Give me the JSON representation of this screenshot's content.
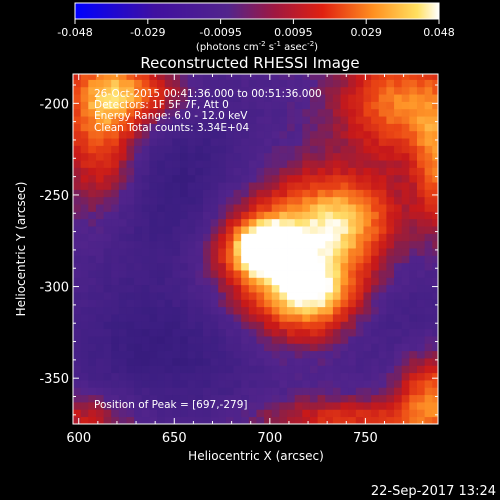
{
  "colorbar": {
    "ticks": [
      "-0.048",
      "-0.029",
      "-0.0095",
      "0.0095",
      "0.029",
      "0.048"
    ],
    "units_prefix": "(photons cm",
    "units_exp1": "-2",
    "units_mid": " s",
    "units_exp2": "-1",
    "units_mid2": " asec",
    "units_exp3": "-2",
    "units_suffix": ")",
    "min": -0.048,
    "max": 0.048
  },
  "chart_data": {
    "type": "heatmap",
    "title": "Reconstructed RHESSI Image",
    "xlabel": "Heliocentric X (arcsec)",
    "ylabel": "Heliocentric Y (arcsec)",
    "xlim": [
      597,
      788
    ],
    "ylim": [
      -375,
      -184
    ],
    "x_ticks": [
      "600",
      "650",
      "700",
      "750"
    ],
    "y_ticks": [
      "-200",
      "-250",
      "-300",
      "-350"
    ],
    "annotations": [
      "26-Oct-2015 00:41:36.000 to 00:51:36.000",
      "Detectors: 1F 5F 7F, Att 0",
      "Energy Range: 6.0 - 12.0 keV",
      "Clean     Total counts: 3.34E+04",
      "Position of Peak = [697,-279]"
    ],
    "peak": {
      "x": 697,
      "y": -279
    },
    "colormap": "blue-purple-red-yellow-white",
    "colors": {
      "low": "#0000ff",
      "background": "#52248c",
      "mid": "#d01818",
      "high": "#ffc030",
      "max": "#ffffff"
    }
  },
  "footer": {
    "date": "22-Sep-2017 13:24"
  }
}
